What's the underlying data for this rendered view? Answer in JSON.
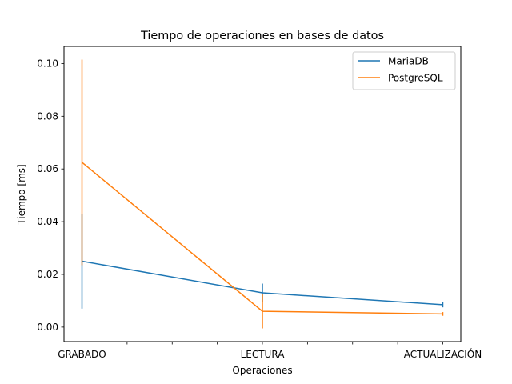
{
  "chart_data": {
    "type": "line",
    "title": "Tiempo de operaciones en bases de datos",
    "xlabel": "Operaciones",
    "ylabel": "Tiempo [ms]",
    "categories": [
      "GRABADO",
      "LECTURA",
      "ACTUALIZACIÓN"
    ],
    "ylim": [
      -0.0055,
      0.1065
    ],
    "yticks": [
      "0.00",
      "0.02",
      "0.04",
      "0.06",
      "0.08",
      "0.10"
    ],
    "ytick_values": [
      0.0,
      0.02,
      0.04,
      0.06,
      0.08,
      0.1
    ],
    "grid": false,
    "legend_position": "top-right",
    "series": [
      {
        "name": "MariaDB",
        "color": "#1f77b4",
        "values": [
          0.025,
          0.013,
          0.0085
        ],
        "error": [
          0.018,
          0.0035,
          0.001
        ]
      },
      {
        "name": "PostgreSQL",
        "color": "#ff7f0e",
        "values": [
          0.0625,
          0.006,
          0.005
        ],
        "error": [
          0.039,
          0.0065,
          0.0007
        ]
      }
    ]
  }
}
